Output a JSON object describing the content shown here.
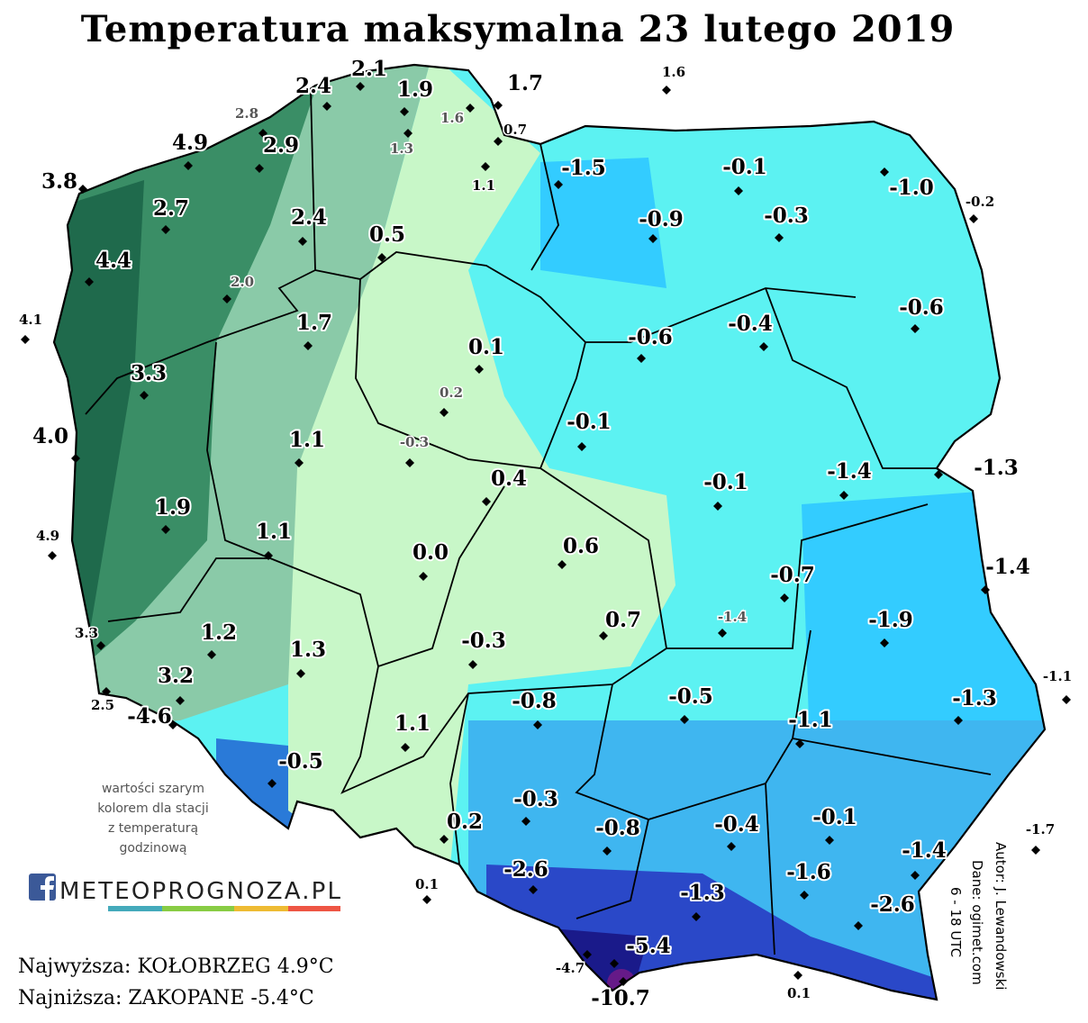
{
  "title": "Temperatura maksymalna 23 lutego 2019",
  "stations": [
    {
      "value": 2.4
    },
    {
      "value": 2.1
    },
    {
      "value": 1.9
    },
    {
      "value": 1.7
    },
    {
      "value": 1.6
    },
    {
      "value": 2.8,
      "color": "#555555"
    },
    {
      "value": 1.6,
      "color": "#555555"
    },
    {
      "value": 1.3,
      "color": "#555555"
    },
    {
      "value": 0.7
    },
    {
      "value": 4.9
    },
    {
      "value": 2.9
    },
    {
      "value": 1.1
    },
    {
      "value": 3.8
    },
    {
      "value": -1.5
    },
    {
      "value": -0.1
    },
    {
      "value": -1,
      "label": "-1.0"
    },
    {
      "value": -0.2
    },
    {
      "value": 2.7
    },
    {
      "value": 2.4
    },
    {
      "value": -0.9
    },
    {
      "value": -0.3
    },
    {
      "value": 0.5
    },
    {
      "value": 4.4
    },
    {
      "value": 2,
      "label": "2.0",
      "color": "#555555"
    },
    {
      "value": 4.1
    },
    {
      "value": -0.6
    },
    {
      "value": 1.7
    },
    {
      "value": -0.6
    },
    {
      "value": -0.4
    },
    {
      "value": 0.1
    },
    {
      "value": 3.3
    },
    {
      "value": 0.2,
      "color": "#555555"
    },
    {
      "value": -0.1
    },
    {
      "value": 4,
      "label": "4.0"
    },
    {
      "value": 1.1
    },
    {
      "value": -0.3,
      "color": "#555555"
    },
    {
      "value": -1.3
    },
    {
      "value": -1.4
    },
    {
      "value": 0.4
    },
    {
      "value": -0.1
    },
    {
      "value": 1.9
    },
    {
      "value": 4.9
    },
    {
      "value": 1.1
    },
    {
      "value": 0,
      "label": "0.0"
    },
    {
      "value": 0.6
    },
    {
      "value": -0.7
    },
    {
      "value": -1.4
    },
    {
      "value": -1.4,
      "color": "#555555"
    },
    {
      "value": 0.7
    },
    {
      "value": -1.9
    },
    {
      "value": 3.3
    },
    {
      "value": 1.2
    },
    {
      "value": -0.3
    },
    {
      "value": 1.3
    },
    {
      "value": 3.2
    },
    {
      "value": -1.1
    },
    {
      "value": -0.5
    },
    {
      "value": -1.3
    },
    {
      "value": -0.8
    },
    {
      "value": 2.5
    },
    {
      "value": -4.6
    },
    {
      "value": -1.1
    },
    {
      "value": 1.1
    },
    {
      "value": -0.5
    },
    {
      "value": -0.3
    },
    {
      "value": 0.2
    },
    {
      "value": -0.8
    },
    {
      "value": -0.4
    },
    {
      "value": -0.1
    },
    {
      "value": -1.7
    },
    {
      "value": -1.4
    },
    {
      "value": -2.6
    },
    {
      "value": -1.6
    },
    {
      "value": 0.1
    },
    {
      "value": -1.3
    },
    {
      "value": -2.6
    },
    {
      "value": -5.4
    },
    {
      "value": -4.7
    },
    {
      "value": 0.1
    },
    {
      "value": -10.7
    }
  ],
  "note": [
    "wartości szarym",
    "kolorem dla stacji",
    "z temperaturą",
    "godzinową"
  ],
  "logo": "METEOPROGNOZA.PL",
  "summary": {
    "highest": "Najwyższa: KOŁOBRZEG 4.9°C",
    "lowest": "Najniższa: ZAKOPANE -5.4°C"
  },
  "credits": [
    "Autor: J. Lewandowski",
    "Dane: ogimet.com",
    "6 - 18 UTC"
  ]
}
